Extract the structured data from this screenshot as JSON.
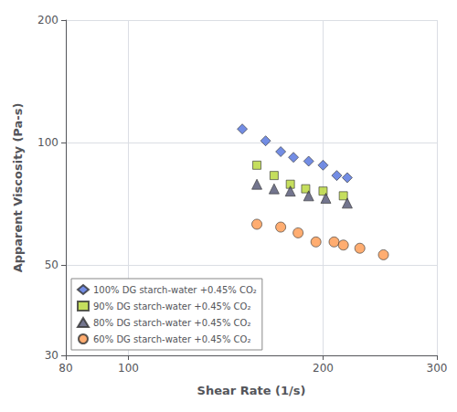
{
  "chart_data": {
    "type": "scatter",
    "xlabel": "Shear Rate (1/s)",
    "ylabel": "Apparent Viscosity (Pa-s)",
    "log": true,
    "grid": true,
    "legend": "lower left",
    "xlim": [
      80,
      300
    ],
    "ylim": [
      30,
      200
    ],
    "xticks": [
      80,
      100,
      200,
      300
    ],
    "yticks": [
      30,
      50,
      100,
      200
    ],
    "series": [
      {
        "name": "100% DG starch-water +0.45% CO₂",
        "marker": "diamond",
        "x": [
          150,
          163,
          172,
          180,
          190,
          200,
          210,
          218
        ],
        "values": [
          108,
          101,
          95,
          92,
          90,
          88,
          83,
          82
        ]
      },
      {
        "name": "90% DG starch-water +0.45% CO₂",
        "marker": "square",
        "x": [
          158,
          168,
          178,
          188,
          200,
          215
        ],
        "values": [
          88,
          83,
          79,
          77,
          76,
          74
        ]
      },
      {
        "name": "80% DG starch-water +0.45% CO₂",
        "marker": "triangle",
        "x": [
          158,
          168,
          178,
          190,
          202,
          218
        ],
        "values": [
          79,
          77,
          76,
          74,
          73,
          71
        ]
      },
      {
        "name": "60% DG starch-water +0.45% CO₂",
        "marker": "circle",
        "x": [
          158,
          172,
          183,
          195,
          208,
          215,
          228,
          248
        ],
        "values": [
          63,
          62,
          60,
          57,
          57,
          56,
          55,
          53
        ]
      }
    ]
  }
}
